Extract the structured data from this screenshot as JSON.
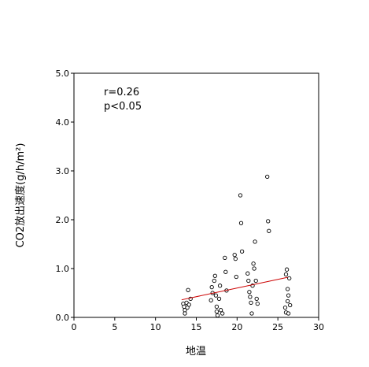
{
  "chart_data": {
    "type": "scatter",
    "title": "",
    "xlabel": "地温",
    "ylabel": "CO2放出速度(g/h/m²)",
    "xlim": [
      0,
      30
    ],
    "ylim": [
      0,
      5
    ],
    "x_ticks": [
      "0",
      "5",
      "10",
      "15",
      "20",
      "25",
      "30"
    ],
    "y_ticks": [
      "0.0",
      "1.0",
      "2.0",
      "3.0",
      "4.0",
      "5.0"
    ],
    "grid": false,
    "annotations": [
      "r=0.26",
      "p<0.05"
    ],
    "series": [
      {
        "marker": "open-circle",
        "color": "#000000",
        "points": [
          [
            13.4,
            0.28
          ],
          [
            13.5,
            0.22
          ],
          [
            13.6,
            0.15
          ],
          [
            13.6,
            0.08
          ],
          [
            13.8,
            0.3
          ],
          [
            13.9,
            0.2
          ],
          [
            14.0,
            0.56
          ],
          [
            14.1,
            0.26
          ],
          [
            14.3,
            0.38
          ],
          [
            16.8,
            0.35
          ],
          [
            16.9,
            0.62
          ],
          [
            17.0,
            0.5
          ],
          [
            17.2,
            0.75
          ],
          [
            17.3,
            0.85
          ],
          [
            17.4,
            0.45
          ],
          [
            17.5,
            0.22
          ],
          [
            17.5,
            0.12
          ],
          [
            17.6,
            0.04
          ],
          [
            17.8,
            0.38
          ],
          [
            17.9,
            0.65
          ],
          [
            18.0,
            0.15
          ],
          [
            18.2,
            0.08
          ],
          [
            18.5,
            1.22
          ],
          [
            18.6,
            0.93
          ],
          [
            18.7,
            0.55
          ],
          [
            19.7,
            1.28
          ],
          [
            19.8,
            1.2
          ],
          [
            19.9,
            0.83
          ],
          [
            20.4,
            2.5
          ],
          [
            20.5,
            1.93
          ],
          [
            20.6,
            1.35
          ],
          [
            21.3,
            0.9
          ],
          [
            21.4,
            0.75
          ],
          [
            21.5,
            0.52
          ],
          [
            21.6,
            0.42
          ],
          [
            21.7,
            0.3
          ],
          [
            21.8,
            0.08
          ],
          [
            21.9,
            0.65
          ],
          [
            22.0,
            1.1
          ],
          [
            22.1,
            1.0
          ],
          [
            22.2,
            1.55
          ],
          [
            22.3,
            0.75
          ],
          [
            22.4,
            0.38
          ],
          [
            22.5,
            0.28
          ],
          [
            23.7,
            2.88
          ],
          [
            23.8,
            1.97
          ],
          [
            23.9,
            1.77
          ],
          [
            25.9,
            0.2
          ],
          [
            26.0,
            0.1
          ],
          [
            26.0,
            0.88
          ],
          [
            26.1,
            0.98
          ],
          [
            26.2,
            0.58
          ],
          [
            26.2,
            0.33
          ],
          [
            26.3,
            0.45
          ],
          [
            26.3,
            0.08
          ],
          [
            26.4,
            0.8
          ],
          [
            26.5,
            0.25
          ]
        ]
      }
    ],
    "trendline": {
      "color": "#cc0000",
      "x": [
        13.2,
        26.2
      ],
      "y": [
        0.36,
        0.82
      ]
    }
  }
}
